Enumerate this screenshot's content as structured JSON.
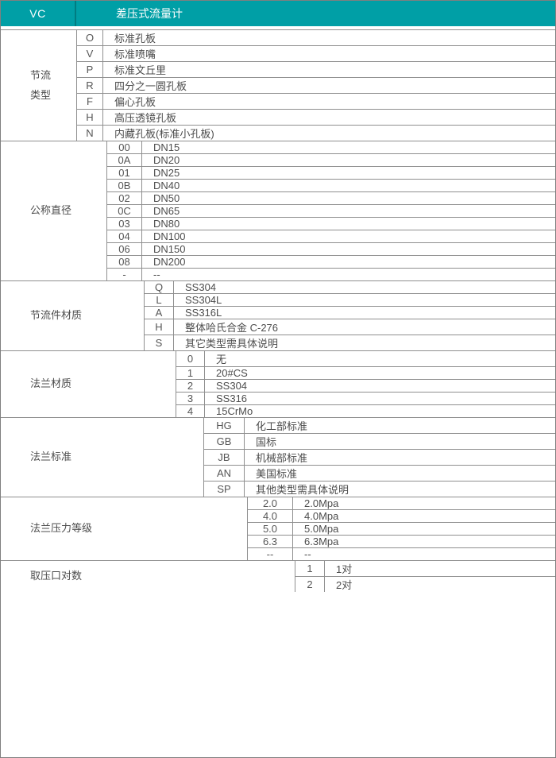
{
  "header": {
    "code": "VC",
    "title": "差压式流量计"
  },
  "colors": {
    "accent_teal": "#009fa6",
    "border_gray": "#8f8f8f",
    "text_gray": "#4c4c4c"
  },
  "sections": [
    {
      "label": "节流\n类型",
      "rows": [
        {
          "code": "O",
          "desc": "标准孔板"
        },
        {
          "code": "V",
          "desc": "标准喷嘴"
        },
        {
          "code": "P",
          "desc": "标准文丘里"
        },
        {
          "code": "R",
          "desc": "四分之一圆孔板"
        },
        {
          "code": "F",
          "desc": "偏心孔板"
        },
        {
          "code": "H",
          "desc": "高压透镜孔板"
        },
        {
          "code": "N",
          "desc": "内藏孔板(标准小孔板)"
        }
      ]
    },
    {
      "label": "公称直径",
      "rows": [
        {
          "code": "00",
          "desc": "DN15"
        },
        {
          "code": "0A",
          "desc": "DN20"
        },
        {
          "code": "01",
          "desc": "DN25"
        },
        {
          "code": "0B",
          "desc": "DN40"
        },
        {
          "code": "02",
          "desc": "DN50"
        },
        {
          "code": "0C",
          "desc": "DN65"
        },
        {
          "code": "03",
          "desc": "DN80"
        },
        {
          "code": "04",
          "desc": "DN100"
        },
        {
          "code": "06",
          "desc": "DN150"
        },
        {
          "code": "08",
          "desc": "DN200"
        },
        {
          "code": "-",
          "desc": "--"
        }
      ]
    },
    {
      "label": "节流件材质",
      "rows": [
        {
          "code": "Q",
          "desc": "SS304"
        },
        {
          "code": "L",
          "desc": "SS304L"
        },
        {
          "code": "A",
          "desc": "SS316L"
        },
        {
          "code": "H",
          "desc": "整体哈氏合金 C-276"
        },
        {
          "code": "S",
          "desc": "其它类型需具体说明"
        }
      ]
    },
    {
      "label": "法兰材质",
      "rows": [
        {
          "code": "0",
          "desc": "无"
        },
        {
          "code": "1",
          "desc": "20#CS"
        },
        {
          "code": "2",
          "desc": "SS304"
        },
        {
          "code": "3",
          "desc": "SS316"
        },
        {
          "code": "4",
          "desc": "15CrMo"
        }
      ]
    },
    {
      "label": "法兰标准",
      "rows": [
        {
          "code": "HG",
          "desc": "化工部标准"
        },
        {
          "code": "GB",
          "desc": "国标"
        },
        {
          "code": "JB",
          "desc": "机械部标准"
        },
        {
          "code": "AN",
          "desc": "美国标准"
        },
        {
          "code": "SP",
          "desc": "其他类型需具体说明"
        }
      ]
    },
    {
      "label": "法兰压力等级",
      "rows": [
        {
          "code": "2.0",
          "desc": "2.0Mpa"
        },
        {
          "code": "4.0",
          "desc": "4.0Mpa"
        },
        {
          "code": "5.0",
          "desc": "5.0Mpa"
        },
        {
          "code": "6.3",
          "desc": "6.3Mpa"
        },
        {
          "code": "--",
          "desc": "--"
        }
      ]
    },
    {
      "label": "取压口对数",
      "rows": [
        {
          "code": "1",
          "desc": "1对"
        },
        {
          "code": "2",
          "desc": "2对"
        }
      ]
    }
  ]
}
